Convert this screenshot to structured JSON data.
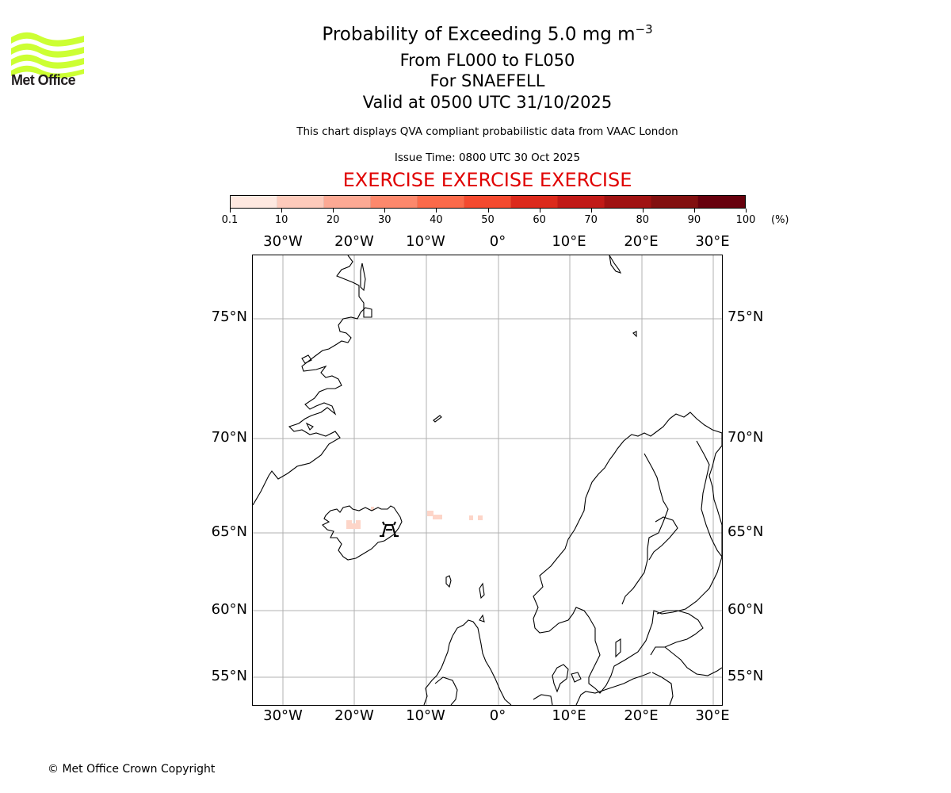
{
  "logo": {
    "text": "Met Office",
    "color": "#ccff33"
  },
  "title": {
    "line1_prefix": "Probability of Exceeding 5.0 mg m",
    "line1_exp": "−3",
    "line2": "From FL000 to FL050",
    "line3": "For SNAEFELL",
    "line4": "Valid at 0500 UTC 31/10/2025"
  },
  "info": "This chart displays QVA compliant probabilistic data from VAAC London",
  "issue_time": "Issue Time: 0800 UTC 30 Oct 2025",
  "exercise": "EXERCISE EXERCISE EXERCISE",
  "colorbar": {
    "labels": [
      "0.1",
      "10",
      "20",
      "30",
      "40",
      "50",
      "60",
      "70",
      "80",
      "90",
      "100"
    ],
    "unit": "(%)",
    "colors": [
      "#fee8e0",
      "#fdcabb",
      "#fca994",
      "#fc886c",
      "#fb6a4a",
      "#f44a2f",
      "#dc2a1c",
      "#c11a17",
      "#a01212",
      "#821010",
      "#67000d"
    ]
  },
  "map": {
    "lon_labels": [
      "30°W",
      "20°W",
      "10°W",
      "0°",
      "10°E",
      "20°E",
      "30°E"
    ],
    "lat_labels": [
      "75°N",
      "70°N",
      "65°N",
      "60°N",
      "55°N"
    ],
    "volcano": "SNAEFELL",
    "line_color": "#000000",
    "grid_color": "#b0b0b0",
    "probability_low_color": "#fdd5c8"
  },
  "copyright": "© Met Office Crown Copyright"
}
